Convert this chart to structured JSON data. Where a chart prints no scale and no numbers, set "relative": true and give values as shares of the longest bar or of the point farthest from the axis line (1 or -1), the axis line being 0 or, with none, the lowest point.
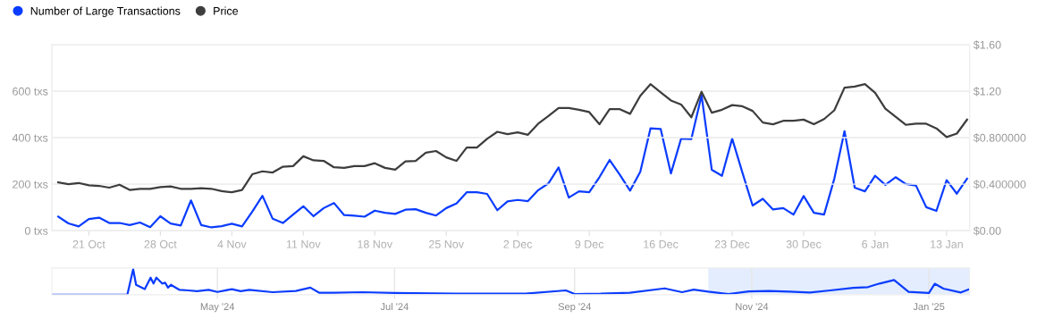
{
  "chart_data": [
    {
      "type": "line",
      "legend": "top left",
      "grid": "y",
      "marker": "none",
      "line_style": "solid",
      "xlim": [
        "2024-10-17T09:00",
        "2025-01-15T06:00"
      ],
      "xticks": [
        {
          "value": "2024-10-21",
          "label": "21 Oct"
        },
        {
          "value": "2024-10-28",
          "label": "28 Oct"
        },
        {
          "value": "2024-11-04",
          "label": "4 Nov"
        },
        {
          "value": "2024-11-11",
          "label": "11 Nov"
        },
        {
          "value": "2024-11-18",
          "label": "18 Nov"
        },
        {
          "value": "2024-11-25",
          "label": "25 Nov"
        },
        {
          "value": "2024-12-02",
          "label": "2 Dec"
        },
        {
          "value": "2024-12-09",
          "label": "9 Dec"
        },
        {
          "value": "2024-12-16",
          "label": "16 Dec"
        },
        {
          "value": "2024-12-23",
          "label": "23 Dec"
        },
        {
          "value": "2024-12-30",
          "label": "30 Dec"
        },
        {
          "value": "2025-01-06",
          "label": "6 Jan"
        },
        {
          "value": "2025-01-13",
          "label": "13 Jan"
        }
      ],
      "ylim": [
        0,
        800
      ],
      "yticks": [
        {
          "value": 0,
          "label": "0 txs"
        },
        {
          "value": 200,
          "label": "200 txs"
        },
        {
          "value": 400,
          "label": "400 txs"
        },
        {
          "value": 600,
          "label": "600 txs"
        }
      ],
      "y2lim": [
        0,
        1.6
      ],
      "y2ticks": [
        {
          "value": 0,
          "label": "$0.00"
        },
        {
          "value": 0.4,
          "label": "$0.400000"
        },
        {
          "value": 0.8,
          "label": "$0.800000"
        },
        {
          "value": 1.2,
          "label": "$1.20"
        },
        {
          "value": 1.6,
          "label": "$1.60"
        }
      ],
      "x": [
        "2024-10-18",
        "2024-10-19",
        "2024-10-20",
        "2024-10-21",
        "2024-10-22",
        "2024-10-23",
        "2024-10-24",
        "2024-10-25",
        "2024-10-26",
        "2024-10-27",
        "2024-10-28",
        "2024-10-29",
        "2024-10-30",
        "2024-10-31",
        "2024-11-01",
        "2024-11-02",
        "2024-11-03",
        "2024-11-04",
        "2024-11-05",
        "2024-11-06",
        "2024-11-07",
        "2024-11-08",
        "2024-11-09",
        "2024-11-10",
        "2024-11-11",
        "2024-11-12",
        "2024-11-13",
        "2024-11-14",
        "2024-11-15",
        "2024-11-16",
        "2024-11-17",
        "2024-11-18",
        "2024-11-19",
        "2024-11-20",
        "2024-11-21",
        "2024-11-22",
        "2024-11-23",
        "2024-11-24",
        "2024-11-25",
        "2024-11-26",
        "2024-11-27",
        "2024-11-28",
        "2024-11-29",
        "2024-11-30",
        "2024-12-01",
        "2024-12-02",
        "2024-12-03",
        "2024-12-04",
        "2024-12-05",
        "2024-12-06",
        "2024-12-07",
        "2024-12-08",
        "2024-12-09",
        "2024-12-10",
        "2024-12-11",
        "2024-12-12",
        "2024-12-13",
        "2024-12-14",
        "2024-12-15",
        "2024-12-16",
        "2024-12-17",
        "2024-12-18",
        "2024-12-19",
        "2024-12-20",
        "2024-12-21",
        "2024-12-22",
        "2024-12-23",
        "2024-12-24",
        "2024-12-25",
        "2024-12-26",
        "2024-12-27",
        "2024-12-28",
        "2024-12-29",
        "2024-12-30",
        "2024-12-31",
        "2025-01-01",
        "2025-01-02",
        "2025-01-03",
        "2025-01-04",
        "2025-01-05",
        "2025-01-06",
        "2025-01-07",
        "2025-01-08",
        "2025-01-09",
        "2025-01-10",
        "2025-01-11",
        "2025-01-12",
        "2025-01-13",
        "2025-01-14",
        "2025-01-15"
      ],
      "series": [
        {
          "name": "Number of Large Transactions",
          "color": "#0a3cff",
          "values": [
            60,
            31,
            18,
            50,
            56,
            33,
            33,
            24,
            35,
            15,
            62,
            31,
            22,
            130,
            24,
            14,
            19,
            30,
            18,
            82,
            150,
            51,
            33,
            69,
            105,
            62,
            97,
            119,
            67,
            64,
            60,
            86,
            77,
            72,
            90,
            92,
            77,
            65,
            97,
            117,
            165,
            165,
            158,
            88,
            126,
            132,
            127,
            174,
            203,
            272,
            142,
            169,
            165,
            230,
            304,
            240,
            172,
            253,
            440,
            437,
            246,
            396,
            394,
            582,
            262,
            236,
            396,
            250,
            108,
            137,
            91,
            97,
            69,
            149,
            77,
            69,
            223,
            428,
            185,
            169,
            236,
            197,
            230,
            201,
            194,
            101,
            85,
            217,
            159,
            223
          ]
        },
        {
          "name": "Price",
          "color": "#3d3d3d",
          "axis": "y2",
          "values": [
            0.415,
            0.4,
            0.41,
            0.39,
            0.385,
            0.37,
            0.395,
            0.35,
            0.36,
            0.36,
            0.375,
            0.38,
            0.36,
            0.36,
            0.365,
            0.36,
            0.34,
            0.33,
            0.35,
            0.485,
            0.51,
            0.5,
            0.55,
            0.555,
            0.64,
            0.605,
            0.6,
            0.545,
            0.54,
            0.555,
            0.555,
            0.58,
            0.54,
            0.525,
            0.595,
            0.6,
            0.67,
            0.685,
            0.63,
            0.6,
            0.715,
            0.715,
            0.79,
            0.85,
            0.83,
            0.845,
            0.825,
            0.92,
            0.985,
            1.055,
            1.055,
            1.04,
            1.02,
            0.915,
            1.045,
            1.045,
            1.005,
            1.16,
            1.26,
            1.19,
            1.12,
            1.085,
            0.975,
            1.195,
            1.015,
            1.04,
            1.08,
            1.07,
            1.03,
            0.93,
            0.915,
            0.945,
            0.945,
            0.955,
            0.915,
            0.96,
            1.035,
            1.23,
            1.24,
            1.26,
            1.185,
            1.05,
            0.98,
            0.91,
            0.92,
            0.92,
            0.88,
            0.805,
            0.835,
            0.955
          ]
        }
      ]
    },
    {
      "type": "line",
      "relative": true,
      "tick_labels": "x",
      "grid": "x",
      "marker": "none",
      "line_style": "solid",
      "xlim": [
        "2024-03-05",
        "2025-01-15"
      ],
      "xticks": [
        {
          "value": "2024-05-01",
          "label": "May '24"
        },
        {
          "value": "2024-07-01",
          "label": "Jul '24"
        },
        {
          "value": "2024-09-01",
          "label": "Sep '24"
        },
        {
          "value": "2024-11-01",
          "label": "Nov '24"
        },
        {
          "value": "2025-01-01",
          "label": "Jan '25"
        }
      ],
      "bands": [
        {
          "axis": "x",
          "from": "2024-10-17",
          "to": "2025-01-15",
          "color": "#e3edfd"
        }
      ],
      "x": [
        "2024-03-05",
        "2024-03-31",
        "2024-04-02",
        "2024-04-03",
        "2024-04-06",
        "2024-04-08",
        "2024-04-09",
        "2024-04-10",
        "2024-04-12",
        "2024-04-13",
        "2024-04-14",
        "2024-04-15",
        "2024-04-18",
        "2024-04-21",
        "2024-04-24",
        "2024-04-28",
        "2024-05-01",
        "2024-05-06",
        "2024-05-09",
        "2024-05-12",
        "2024-05-20",
        "2024-05-28",
        "2024-06-02",
        "2024-06-05",
        "2024-06-10",
        "2024-06-20",
        "2024-07-01",
        "2024-07-15",
        "2024-08-01",
        "2024-08-15",
        "2024-08-29",
        "2024-09-01",
        "2024-09-10",
        "2024-09-20",
        "2024-10-02",
        "2024-10-08",
        "2024-10-12",
        "2024-10-17",
        "2024-10-24",
        "2024-10-31",
        "2024-11-07",
        "2024-11-14",
        "2024-11-21",
        "2024-11-28",
        "2024-12-06",
        "2024-12-11",
        "2024-12-15",
        "2024-12-20",
        "2024-12-25",
        "2025-01-01",
        "2025-01-03",
        "2025-01-06",
        "2025-01-12",
        "2025-01-15"
      ],
      "series": [
        {
          "color": "#0a3cff",
          "values": [
            0,
            0,
            1.0,
            0.39,
            0.22,
            0.67,
            0.44,
            0.67,
            0.44,
            0.47,
            0.28,
            0.39,
            0.19,
            0.17,
            0.14,
            0.19,
            0.11,
            0.22,
            0.14,
            0.19,
            0.1,
            0.15,
            0.28,
            0.08,
            0.08,
            0.1,
            0.07,
            0.05,
            0.04,
            0.04,
            0.17,
            0.03,
            0.04,
            0.08,
            0.25,
            0.1,
            0.2,
            0.12,
            0.03,
            0.13,
            0.15,
            0.12,
            0.09,
            0.17,
            0.27,
            0.3,
            0.44,
            0.58,
            0.11,
            0.07,
            0.43,
            0.24,
            0.09,
            0.22
          ]
        }
      ]
    }
  ]
}
